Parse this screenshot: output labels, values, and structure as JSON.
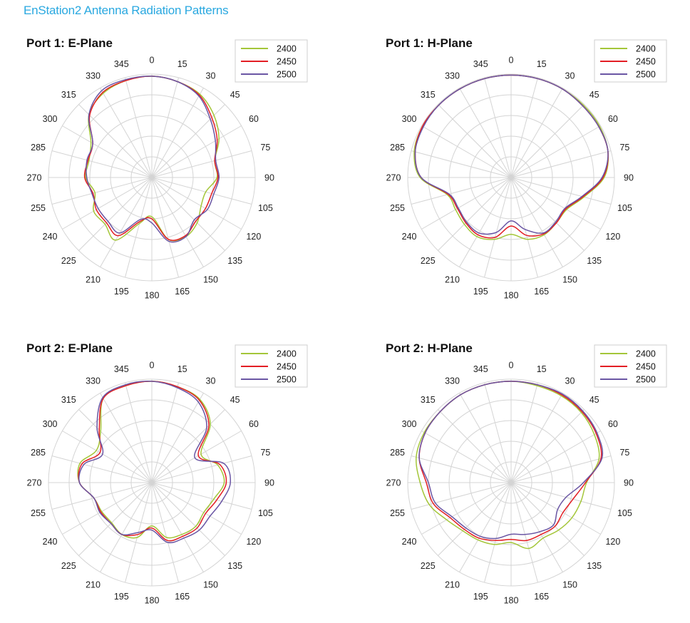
{
  "page": {
    "title": "EnStation2 Antenna Radiation Patterns"
  },
  "colors": {
    "title": "#29a8e0",
    "s2400": "#a4c639",
    "s2450": "#e31e24",
    "s2500": "#6a56a4",
    "grid": "#d4d4d4"
  },
  "chart_data": [
    {
      "type": "polar-line",
      "title": "Port 1: E-Plane",
      "angle_ticks": [
        "0",
        "15",
        "30",
        "45",
        "60",
        "75",
        "90",
        "105",
        "120",
        "135",
        "150",
        "165",
        "180",
        "195",
        "210",
        "225",
        "240",
        "255",
        "270",
        "285",
        "300",
        "315",
        "330",
        "345"
      ],
      "angles": [
        0,
        15,
        30,
        45,
        60,
        75,
        90,
        105,
        120,
        135,
        150,
        165,
        180,
        195,
        210,
        225,
        240,
        255,
        270,
        285,
        300,
        315,
        330,
        345
      ],
      "series": [
        {
          "name": "2400",
          "color": "#a4c639",
          "r": [
            0.98,
            0.96,
            0.93,
            0.85,
            0.75,
            0.63,
            0.63,
            0.54,
            0.55,
            0.62,
            0.66,
            0.62,
            0.38,
            0.46,
            0.7,
            0.64,
            0.65,
            0.57,
            0.64,
            0.63,
            0.68,
            0.86,
            0.94,
            0.97
          ]
        },
        {
          "name": "2450",
          "color": "#e31e24",
          "r": [
            0.98,
            0.96,
            0.92,
            0.82,
            0.73,
            0.63,
            0.64,
            0.6,
            0.6,
            0.6,
            0.65,
            0.62,
            0.4,
            0.44,
            0.65,
            0.62,
            0.62,
            0.59,
            0.65,
            0.64,
            0.66,
            0.85,
            0.95,
            0.97
          ]
        },
        {
          "name": "2500",
          "color": "#6a56a4",
          "r": [
            0.98,
            0.96,
            0.91,
            0.8,
            0.71,
            0.64,
            0.65,
            0.62,
            0.62,
            0.58,
            0.66,
            0.64,
            0.44,
            0.42,
            0.62,
            0.6,
            0.6,
            0.6,
            0.63,
            0.65,
            0.66,
            0.86,
            0.97,
            0.98
          ]
        }
      ]
    },
    {
      "type": "polar-line",
      "title": "Port 1: H-Plane",
      "angle_ticks": [
        "0",
        "15",
        "30",
        "45",
        "60",
        "75",
        "90",
        "105",
        "120",
        "135",
        "150",
        "165",
        "180",
        "195",
        "210",
        "225",
        "240",
        "255",
        "270",
        "285",
        "300",
        "315",
        "330",
        "345"
      ],
      "angles": [
        0,
        15,
        30,
        45,
        60,
        75,
        90,
        105,
        120,
        135,
        150,
        165,
        180,
        195,
        210,
        225,
        240,
        255,
        270,
        285,
        300,
        315,
        330,
        345
      ],
      "series": [
        {
          "name": "2400",
          "color": "#a4c639",
          "r": [
            0.99,
            0.99,
            0.99,
            0.99,
            0.99,
            0.97,
            0.9,
            0.73,
            0.62,
            0.62,
            0.64,
            0.62,
            0.55,
            0.62,
            0.66,
            0.64,
            0.62,
            0.64,
            0.88,
            0.97,
            0.99,
            0.99,
            0.99,
            0.99
          ]
        },
        {
          "name": "2450",
          "color": "#e31e24",
          "r": [
            0.99,
            0.99,
            0.99,
            0.98,
            0.98,
            0.97,
            0.89,
            0.72,
            0.61,
            0.62,
            0.63,
            0.58,
            0.47,
            0.6,
            0.64,
            0.62,
            0.6,
            0.63,
            0.87,
            0.96,
            0.99,
            0.99,
            0.99,
            0.99
          ]
        },
        {
          "name": "2500",
          "color": "#6a56a4",
          "r": [
            0.99,
            0.99,
            0.99,
            0.98,
            0.98,
            0.97,
            0.88,
            0.71,
            0.6,
            0.61,
            0.62,
            0.52,
            0.42,
            0.55,
            0.62,
            0.61,
            0.59,
            0.62,
            0.87,
            0.96,
            0.98,
            0.99,
            0.99,
            0.99
          ]
        }
      ]
    },
    {
      "type": "polar-line",
      "title": "Port 2: E-Plane",
      "angle_ticks": [
        "0",
        "15",
        "30",
        "45",
        "60",
        "75",
        "90",
        "105",
        "120",
        "135",
        "150",
        "165",
        "180",
        "195",
        "210",
        "225",
        "240",
        "255",
        "270",
        "285",
        "300",
        "315",
        "330",
        "345"
      ],
      "angles": [
        0,
        15,
        30,
        45,
        60,
        75,
        90,
        105,
        120,
        135,
        150,
        165,
        180,
        195,
        210,
        225,
        240,
        255,
        270,
        285,
        300,
        315,
        330,
        345
      ],
      "series": [
        {
          "name": "2400",
          "color": "#a4c639",
          "r": [
            0.98,
            0.96,
            0.93,
            0.8,
            0.55,
            0.66,
            0.7,
            0.62,
            0.58,
            0.6,
            0.58,
            0.55,
            0.42,
            0.55,
            0.58,
            0.55,
            0.56,
            0.58,
            0.7,
            0.72,
            0.62,
            0.7,
            0.94,
            0.97
          ]
        },
        {
          "name": "2450",
          "color": "#e31e24",
          "r": [
            0.98,
            0.96,
            0.92,
            0.78,
            0.52,
            0.68,
            0.72,
            0.65,
            0.6,
            0.62,
            0.6,
            0.58,
            0.44,
            0.52,
            0.58,
            0.56,
            0.57,
            0.58,
            0.7,
            0.7,
            0.58,
            0.72,
            0.94,
            0.97
          ]
        },
        {
          "name": "2500",
          "color": "#6a56a4",
          "r": [
            0.98,
            0.95,
            0.9,
            0.75,
            0.48,
            0.72,
            0.76,
            0.7,
            0.65,
            0.65,
            0.62,
            0.6,
            0.46,
            0.5,
            0.58,
            0.56,
            0.58,
            0.58,
            0.7,
            0.68,
            0.55,
            0.75,
            0.95,
            0.98
          ]
        }
      ]
    },
    {
      "type": "polar-line",
      "title": "Port 2: H-Plane",
      "angle_ticks": [
        "0",
        "15",
        "30",
        "45",
        "60",
        "75",
        "90",
        "105",
        "120",
        "135",
        "150",
        "165",
        "180",
        "195",
        "210",
        "225",
        "240",
        "255",
        "270",
        "285",
        "300",
        "315",
        "330",
        "345"
      ],
      "angles": [
        0,
        15,
        30,
        45,
        60,
        75,
        90,
        105,
        120,
        135,
        150,
        165,
        180,
        195,
        210,
        225,
        240,
        255,
        270,
        285,
        300,
        315,
        330,
        345
      ],
      "series": [
        {
          "name": "2400",
          "color": "#a4c639",
          "r": [
            0.98,
            0.97,
            0.97,
            0.96,
            0.93,
            0.88,
            0.73,
            0.7,
            0.68,
            0.65,
            0.62,
            0.66,
            0.58,
            0.62,
            0.64,
            0.66,
            0.72,
            0.82,
            0.88,
            0.95,
            0.97,
            0.97,
            0.98,
            0.98
          ]
        },
        {
          "name": "2450",
          "color": "#e31e24",
          "r": [
            0.98,
            0.98,
            0.98,
            0.97,
            0.95,
            0.9,
            0.72,
            0.62,
            0.58,
            0.6,
            0.58,
            0.58,
            0.55,
            0.58,
            0.62,
            0.64,
            0.68,
            0.78,
            0.82,
            0.92,
            0.96,
            0.97,
            0.98,
            0.98
          ]
        },
        {
          "name": "2500",
          "color": "#6a56a4",
          "r": [
            0.98,
            0.98,
            0.99,
            0.98,
            0.96,
            0.91,
            0.7,
            0.55,
            0.52,
            0.58,
            0.55,
            0.52,
            0.5,
            0.56,
            0.6,
            0.62,
            0.66,
            0.76,
            0.8,
            0.92,
            0.96,
            0.97,
            0.98,
            0.98
          ]
        }
      ]
    }
  ]
}
